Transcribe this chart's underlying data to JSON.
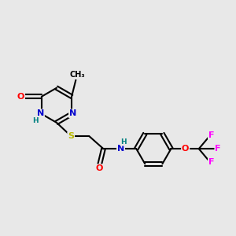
{
  "bg_color": "#e8e8e8",
  "bond_color": "#000000",
  "bond_width": 1.5,
  "atom_colors": {
    "N": "#0000cd",
    "O": "#ff0000",
    "S": "#b8b800",
    "F": "#ff00ff",
    "C": "#000000",
    "H": "#008080"
  },
  "font_size": 8.0
}
